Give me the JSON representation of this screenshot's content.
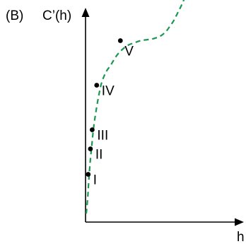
{
  "panel_label": "(B)",
  "chart_data": {
    "type": "line",
    "title": "",
    "ylabel": "C’(h)",
    "xlabel": "h",
    "xlim": [
      0,
      100
    ],
    "ylim": [
      0,
      100
    ],
    "grid": false,
    "legend": "none",
    "ticks": "none",
    "curve": {
      "style": "dashed",
      "color": "#1a9850",
      "x": [
        0.5,
        1.5,
        2.5,
        3.5,
        4.5,
        5.5,
        7,
        9,
        11,
        14,
        17,
        21,
        25,
        29,
        33,
        37,
        42,
        46,
        50,
        53,
        55,
        57,
        59.5,
        62,
        64.5,
        67
      ],
      "y": [
        4,
        12,
        23,
        31,
        38,
        45,
        52,
        60,
        66,
        71,
        74,
        78.5,
        81.5,
        83.5,
        84.5,
        85.5,
        86,
        86.5,
        87.5,
        89,
        90.5,
        92.5,
        95,
        98.5,
        102,
        106
      ]
    },
    "points": [
      {
        "label": "I",
        "x": 1.8,
        "y": 22.5
      },
      {
        "label": "II",
        "x": 3.3,
        "y": 34.5
      },
      {
        "label": "III",
        "x": 4.5,
        "y": 43.5
      },
      {
        "label": "IV",
        "x": 7.5,
        "y": 64.5
      },
      {
        "label": "V",
        "x": 23.5,
        "y": 85.5
      }
    ]
  }
}
